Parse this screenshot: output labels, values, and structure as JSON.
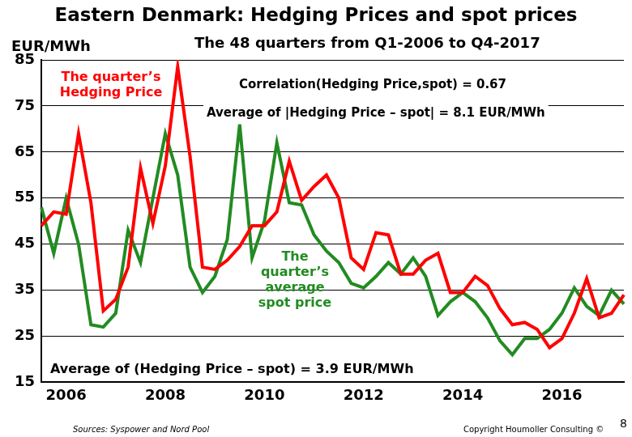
{
  "chart_data": {
    "type": "line",
    "title": "Eastern Denmark: Hedging Prices and spot prices",
    "subtitle": "The 48 quarters from Q1-2006 to Q4-2017",
    "y_label": "EUR/MWh",
    "categories": [
      null,
      null,
      "2006",
      null,
      null,
      null,
      null,
      null,
      null,
      null,
      "2008",
      null,
      null,
      null,
      null,
      null,
      null,
      null,
      "2010",
      null,
      null,
      null,
      null,
      null,
      null,
      null,
      "2012",
      null,
      null,
      null,
      null,
      null,
      null,
      null,
      "2014",
      null,
      null,
      null,
      null,
      null,
      null,
      null,
      "2016",
      null,
      null,
      null,
      null,
      null
    ],
    "series": [
      {
        "name": "The quarter’s Hedging Price",
        "color": "#ff0000",
        "values": [
          49,
          52,
          51.5,
          69,
          54,
          30.5,
          33,
          40,
          61.5,
          49.5,
          62,
          83.5,
          64,
          40,
          39.5,
          41.5,
          44.5,
          49,
          49,
          52,
          63,
          54.5,
          57.5,
          60,
          55,
          42,
          39.5,
          47.5,
          47,
          38.5,
          38.5,
          41.5,
          43,
          34.5,
          34.5,
          38,
          36,
          31,
          27.5,
          28,
          26.5,
          22.5,
          24.5,
          30,
          37.5,
          29,
          30,
          34
        ]
      },
      {
        "name": "The quarter’s average spot price",
        "color": "#228b22",
        "values": [
          53,
          43,
          55,
          45,
          27.5,
          27,
          30,
          48,
          41,
          55,
          69,
          60,
          40,
          34.5,
          38,
          46,
          71,
          42,
          50,
          67,
          54,
          53.5,
          47,
          43.5,
          41,
          36.5,
          35.5,
          38,
          41,
          38.5,
          42,
          38,
          29.5,
          32.5,
          34.5,
          32.5,
          29,
          24,
          21,
          24.5,
          24.5,
          26.5,
          30,
          35.5,
          31.5,
          29.5,
          35,
          32
        ]
      }
    ],
    "ylim": [
      15,
      85
    ],
    "yticks": [
      15,
      25,
      35,
      45,
      55,
      65,
      75,
      85
    ],
    "grid": true,
    "annotations": [
      "Correlation(Hedging Price,spot) = 0.67",
      "Average of |Hedging Price – spot| = 8.1 EUR/MWh",
      "Average of (Hedging Price – spot) = 3.9 EUR/MWh"
    ],
    "source": "Sources: Syspower and Nord Pool",
    "copyright": "Copyright Houmoller Consulting ©",
    "page": 8
  }
}
